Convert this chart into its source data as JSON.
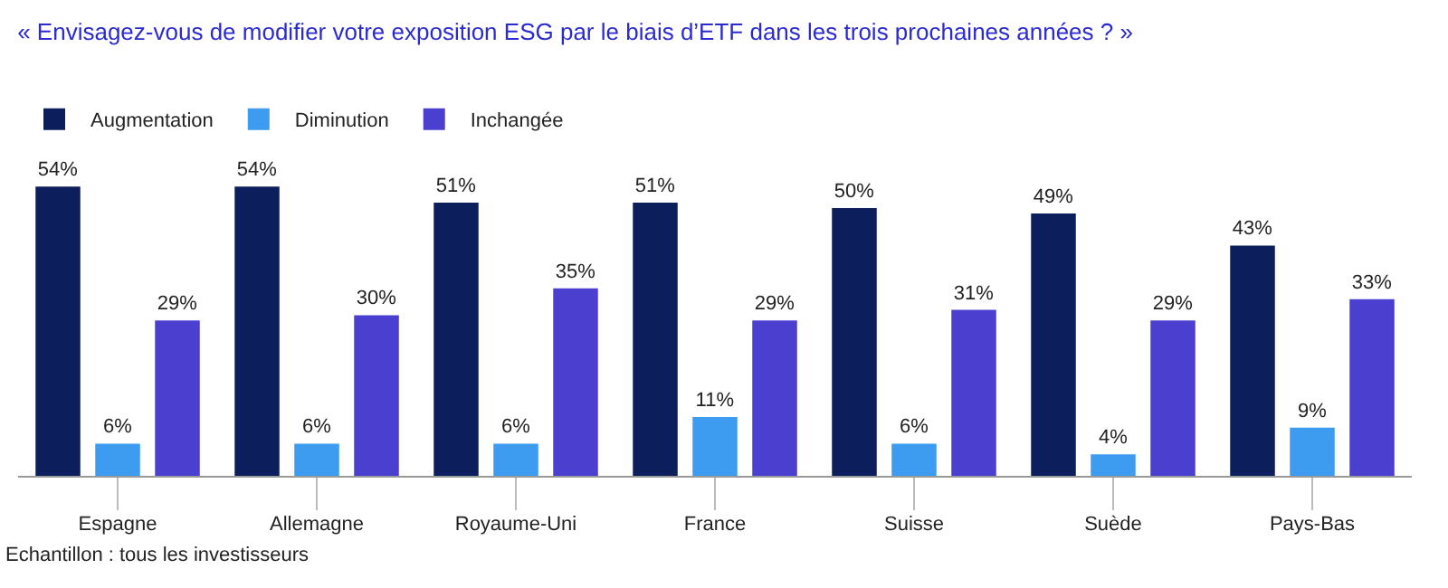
{
  "chart_data": {
    "type": "bar",
    "title": "« Envisagez-vous de modifier votre exposition ESG par le biais d’ETF dans les trois prochaines années ? »",
    "categories": [
      "Espagne",
      "Allemagne",
      "Royaume-Uni",
      "France",
      "Suisse",
      "Suède",
      "Pays-Bas"
    ],
    "series": [
      {
        "name": "Augmentation",
        "color": "#0c1f5c",
        "values": [
          54,
          54,
          51,
          51,
          50,
          49,
          43
        ],
        "value_labels": [
          "54%",
          "54%",
          "51%",
          "51%",
          "50%",
          "49%",
          "43%"
        ]
      },
      {
        "name": "Diminution",
        "color": "#3d9bf0",
        "values": [
          6,
          6,
          6,
          11,
          6,
          4,
          9
        ],
        "value_labels": [
          "6%",
          "6%",
          "6%",
          "11%",
          "6%",
          "4%",
          "9%"
        ]
      },
      {
        "name": "Inchangée",
        "color": "#4a3fcf",
        "values": [
          29,
          30,
          35,
          29,
          31,
          29,
          33
        ],
        "value_labels": [
          "29%",
          "30%",
          "35%",
          "29%",
          "31%",
          "29%",
          "33%"
        ]
      }
    ],
    "legend": "top left",
    "grid": false,
    "annotations": [
      "Echantillon : tous les investisseurs"
    ]
  }
}
